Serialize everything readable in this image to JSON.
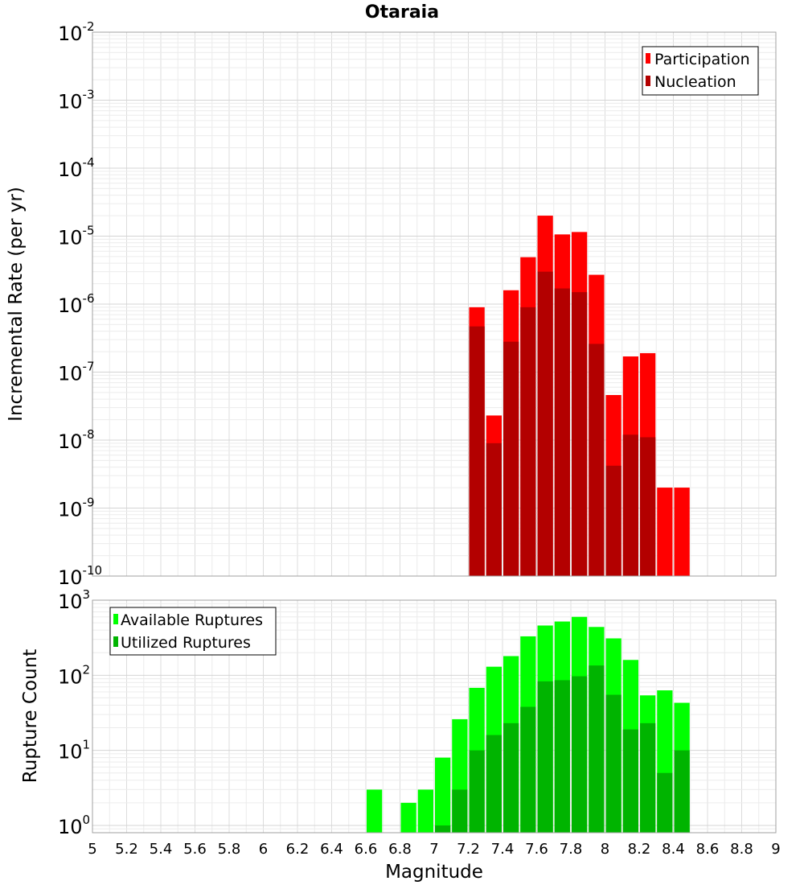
{
  "title": "Otaraia",
  "chart_data": [
    {
      "type": "bar",
      "ylabel": "Incremental Rate (per yr)",
      "xlabel": "",
      "yscale": "log",
      "ylim": [
        1e-10,
        0.01
      ],
      "xlim": [
        5,
        9
      ],
      "grid": true,
      "legend_position": "top-right",
      "x": [
        7.25,
        7.35,
        7.45,
        7.55,
        7.65,
        7.75,
        7.85,
        7.95,
        8.05,
        8.15,
        8.25,
        8.35,
        8.45
      ],
      "series": [
        {
          "name": "Participation",
          "color": "#ff0000",
          "values": [
            9e-07,
            2.3e-08,
            1.6e-06,
            4.9e-06,
            2e-05,
            1.06e-05,
            1.15e-05,
            2.7e-06,
            4.6e-08,
            1.7e-07,
            1.9e-07,
            2e-09,
            2e-09
          ]
        },
        {
          "name": "Nucleation",
          "color": "#b30000",
          "values": [
            4.7e-07,
            9e-09,
            2.8e-07,
            9e-07,
            3e-06,
            1.7e-06,
            1.5e-06,
            2.6e-07,
            4.2e-09,
            1.2e-08,
            1.1e-08,
            null,
            null
          ]
        }
      ]
    },
    {
      "type": "bar",
      "ylabel": "Rupture Count",
      "xlabel": "Magnitude",
      "yscale": "log",
      "ylim": [
        0.8,
        1000
      ],
      "xlim": [
        5,
        9
      ],
      "grid": true,
      "legend_position": "top-left",
      "x": [
        6.65,
        6.75,
        6.85,
        6.95,
        7.05,
        7.15,
        7.25,
        7.35,
        7.45,
        7.55,
        7.65,
        7.75,
        7.85,
        7.95,
        8.05,
        8.15,
        8.25,
        8.35,
        8.45
      ],
      "series": [
        {
          "name": "Available Ruptures",
          "color": "#00ff00",
          "values": [
            3,
            null,
            2,
            3,
            8,
            26,
            68,
            130,
            180,
            330,
            460,
            520,
            600,
            440,
            310,
            160,
            54,
            63,
            43
          ]
        },
        {
          "name": "Utilized Ruptures",
          "color": "#00b400",
          "values": [
            null,
            null,
            null,
            null,
            1,
            3,
            10,
            16,
            23,
            38,
            83,
            86,
            97,
            135,
            55,
            19,
            23,
            5,
            10
          ]
        }
      ]
    }
  ],
  "x_ticks": [
    "5",
    "5.2",
    "5.4",
    "5.6",
    "5.8",
    "6",
    "6.2",
    "6.4",
    "6.6",
    "6.8",
    "7",
    "7.2",
    "7.4",
    "7.6",
    "7.8",
    "8",
    "8.2",
    "8.4",
    "8.6",
    "8.8",
    "9"
  ],
  "top_y_ticks": [
    {
      "base": "10",
      "exp": "-2"
    },
    {
      "base": "10",
      "exp": "-3"
    },
    {
      "base": "10",
      "exp": "-4"
    },
    {
      "base": "10",
      "exp": "-5"
    },
    {
      "base": "10",
      "exp": "-6"
    },
    {
      "base": "10",
      "exp": "-7"
    },
    {
      "base": "10",
      "exp": "-8"
    },
    {
      "base": "10",
      "exp": "-9"
    },
    {
      "base": "10",
      "exp": "-10"
    }
  ],
  "bottom_y_ticks": [
    {
      "base": "10",
      "exp": "3"
    },
    {
      "base": "10",
      "exp": "2"
    },
    {
      "base": "10",
      "exp": "1"
    },
    {
      "base": "10",
      "exp": "0"
    }
  ]
}
